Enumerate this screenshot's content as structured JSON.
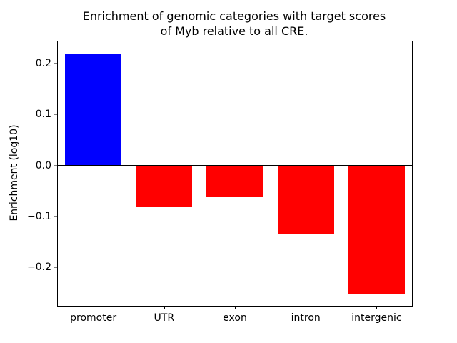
{
  "chart_data": {
    "type": "bar",
    "title": "Enrichment of genomic categories with target scores\nof Myb relative to all CRE.",
    "xlabel": "",
    "ylabel": "Enrichment (log10)",
    "categories": [
      "promoter",
      "UTR",
      "exon",
      "intron",
      "intergenic"
    ],
    "values": [
      0.22,
      -0.082,
      -0.062,
      -0.135,
      -0.252
    ],
    "colors": [
      "#0000ff",
      "#ff0000",
      "#ff0000",
      "#ff0000",
      "#ff0000"
    ],
    "ylim": [
      -0.2756,
      0.2436
    ],
    "yticks": [
      {
        "value": -0.2,
        "label": "−0.2"
      },
      {
        "value": -0.1,
        "label": "−0.1"
      },
      {
        "value": 0.0,
        "label": "0.0"
      },
      {
        "value": 0.1,
        "label": "0.1"
      },
      {
        "value": 0.2,
        "label": "0.2"
      }
    ],
    "zero_line": true,
    "grid": false,
    "bar_rel_width": 0.8
  }
}
